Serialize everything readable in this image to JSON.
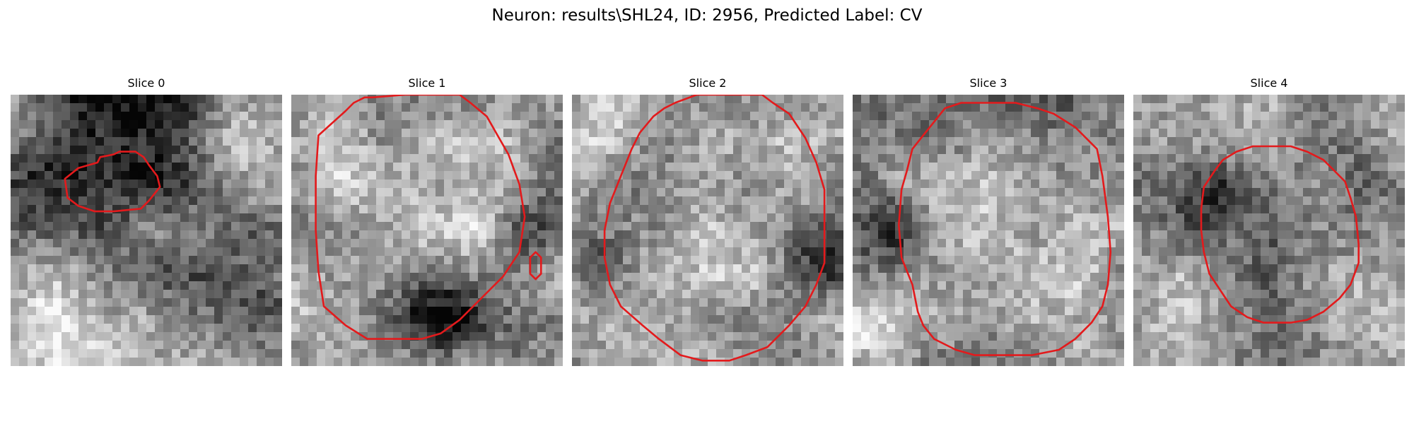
{
  "figure": {
    "title": "Neuron: results\\SHL24, ID: 2956, Predicted Label: CV",
    "panels": [
      {
        "title": "Slice 0",
        "image": "grayscale-em-patch",
        "contour_color": "#e31a1c",
        "seed": 11,
        "blobs": [
          [
            0.42,
            0.12,
            0.22,
            -0.45
          ],
          [
            0.15,
            0.3,
            0.14,
            -0.25
          ],
          [
            0.85,
            0.22,
            0.16,
            0.2
          ],
          [
            0.25,
            0.9,
            0.22,
            0.28
          ],
          [
            0.55,
            0.58,
            0.25,
            -0.12
          ],
          [
            0.9,
            0.7,
            0.12,
            -0.25
          ]
        ],
        "contours": [
          [
            [
              0.25,
              0.27
            ],
            [
              0.32,
              0.25
            ],
            [
              0.33,
              0.23
            ],
            [
              0.38,
              0.22
            ],
            [
              0.4,
              0.21
            ],
            [
              0.46,
              0.21
            ],
            [
              0.49,
              0.23
            ],
            [
              0.51,
              0.26
            ],
            [
              0.54,
              0.3
            ],
            [
              0.55,
              0.34
            ],
            [
              0.51,
              0.39
            ],
            [
              0.48,
              0.42
            ],
            [
              0.38,
              0.43
            ],
            [
              0.31,
              0.43
            ],
            [
              0.25,
              0.41
            ],
            [
              0.21,
              0.38
            ],
            [
              0.2,
              0.31
            ]
          ]
        ]
      },
      {
        "title": "Slice 1",
        "image": "grayscale-em-patch",
        "contour_color": "#e31a1c",
        "seed": 23,
        "blobs": [
          [
            0.5,
            0.45,
            0.28,
            0.18
          ],
          [
            0.55,
            0.8,
            0.12,
            -0.5
          ],
          [
            0.92,
            0.5,
            0.1,
            -0.3
          ],
          [
            0.1,
            0.8,
            0.15,
            0.15
          ],
          [
            0.15,
            0.15,
            0.12,
            0.1
          ]
        ],
        "contours": [
          [
            [
              0.1,
              0.15
            ],
            [
              0.2,
              0.06
            ],
            [
              0.23,
              0.03
            ],
            [
              0.27,
              0.01
            ],
            [
              0.3,
              0.01
            ],
            [
              0.42,
              0.0
            ],
            [
              0.62,
              0.0
            ],
            [
              0.66,
              0.03
            ],
            [
              0.72,
              0.08
            ],
            [
              0.76,
              0.15
            ],
            [
              0.8,
              0.22
            ],
            [
              0.84,
              0.33
            ],
            [
              0.86,
              0.45
            ],
            [
              0.84,
              0.58
            ],
            [
              0.78,
              0.67
            ],
            [
              0.7,
              0.75
            ],
            [
              0.62,
              0.83
            ],
            [
              0.55,
              0.88
            ],
            [
              0.48,
              0.9
            ],
            [
              0.28,
              0.9
            ],
            [
              0.2,
              0.85
            ],
            [
              0.12,
              0.78
            ],
            [
              0.1,
              0.65
            ],
            [
              0.09,
              0.5
            ],
            [
              0.09,
              0.3
            ]
          ],
          [
            [
              0.88,
              0.6
            ],
            [
              0.9,
              0.58
            ],
            [
              0.92,
              0.6
            ],
            [
              0.92,
              0.66
            ],
            [
              0.9,
              0.68
            ],
            [
              0.88,
              0.66
            ]
          ]
        ]
      },
      {
        "title": "Slice 2",
        "image": "grayscale-em-patch",
        "contour_color": "#e31a1c",
        "seed": 37,
        "blobs": [
          [
            0.5,
            0.52,
            0.3,
            0.05
          ],
          [
            0.1,
            0.1,
            0.12,
            0.22
          ],
          [
            0.07,
            0.62,
            0.08,
            -0.3
          ],
          [
            0.93,
            0.6,
            0.09,
            -0.3
          ],
          [
            0.5,
            0.95,
            0.12,
            0.15
          ]
        ],
        "contours": [
          [
            [
              0.25,
              0.14
            ],
            [
              0.3,
              0.08
            ],
            [
              0.34,
              0.05
            ],
            [
              0.38,
              0.03
            ],
            [
              0.46,
              0.0
            ],
            [
              0.62,
              0.0
            ],
            [
              0.7,
              0.0
            ],
            [
              0.74,
              0.03
            ],
            [
              0.8,
              0.07
            ],
            [
              0.86,
              0.16
            ],
            [
              0.9,
              0.25
            ],
            [
              0.93,
              0.35
            ],
            [
              0.93,
              0.5
            ],
            [
              0.93,
              0.62
            ],
            [
              0.9,
              0.7
            ],
            [
              0.86,
              0.78
            ],
            [
              0.8,
              0.85
            ],
            [
              0.72,
              0.93
            ],
            [
              0.64,
              0.96
            ],
            [
              0.58,
              0.98
            ],
            [
              0.48,
              0.98
            ],
            [
              0.4,
              0.96
            ],
            [
              0.32,
              0.9
            ],
            [
              0.26,
              0.85
            ],
            [
              0.18,
              0.78
            ],
            [
              0.14,
              0.7
            ],
            [
              0.12,
              0.6
            ],
            [
              0.12,
              0.5
            ],
            [
              0.14,
              0.4
            ],
            [
              0.18,
              0.3
            ],
            [
              0.22,
              0.2
            ]
          ]
        ]
      },
      {
        "title": "Slice 3",
        "image": "grayscale-em-patch",
        "contour_color": "#e31a1c",
        "seed": 53,
        "blobs": [
          [
            0.55,
            0.55,
            0.28,
            0.08
          ],
          [
            0.1,
            0.5,
            0.12,
            -0.35
          ],
          [
            0.7,
            0.15,
            0.15,
            -0.2
          ],
          [
            0.85,
            0.9,
            0.12,
            0.2
          ],
          [
            0.08,
            0.9,
            0.1,
            0.25
          ]
        ],
        "contours": [
          [
            [
              0.22,
              0.2
            ],
            [
              0.26,
              0.15
            ],
            [
              0.3,
              0.1
            ],
            [
              0.34,
              0.05
            ],
            [
              0.4,
              0.03
            ],
            [
              0.6,
              0.03
            ],
            [
              0.68,
              0.05
            ],
            [
              0.74,
              0.07
            ],
            [
              0.82,
              0.12
            ],
            [
              0.9,
              0.2
            ],
            [
              0.92,
              0.3
            ],
            [
              0.94,
              0.45
            ],
            [
              0.95,
              0.58
            ],
            [
              0.94,
              0.7
            ],
            [
              0.92,
              0.78
            ],
            [
              0.88,
              0.84
            ],
            [
              0.82,
              0.9
            ],
            [
              0.76,
              0.94
            ],
            [
              0.66,
              0.96
            ],
            [
              0.45,
              0.96
            ],
            [
              0.38,
              0.94
            ],
            [
              0.3,
              0.9
            ],
            [
              0.26,
              0.85
            ],
            [
              0.24,
              0.8
            ],
            [
              0.22,
              0.7
            ],
            [
              0.18,
              0.6
            ],
            [
              0.17,
              0.48
            ],
            [
              0.18,
              0.35
            ],
            [
              0.2,
              0.28
            ]
          ]
        ]
      },
      {
        "title": "Slice 4",
        "image": "grayscale-em-patch",
        "contour_color": "#e31a1c",
        "seed": 71,
        "blobs": [
          [
            0.52,
            0.48,
            0.24,
            -0.15
          ],
          [
            0.28,
            0.4,
            0.1,
            -0.25
          ],
          [
            0.85,
            0.85,
            0.12,
            0.15
          ],
          [
            0.15,
            0.9,
            0.15,
            0.2
          ],
          [
            0.9,
            0.2,
            0.12,
            0.05
          ]
        ],
        "contours": [
          [
            [
              0.26,
              0.34
            ],
            [
              0.3,
              0.28
            ],
            [
              0.33,
              0.24
            ],
            [
              0.38,
              0.21
            ],
            [
              0.44,
              0.19
            ],
            [
              0.58,
              0.19
            ],
            [
              0.64,
              0.21
            ],
            [
              0.7,
              0.24
            ],
            [
              0.74,
              0.28
            ],
            [
              0.78,
              0.32
            ],
            [
              0.8,
              0.38
            ],
            [
              0.82,
              0.45
            ],
            [
              0.83,
              0.55
            ],
            [
              0.83,
              0.62
            ],
            [
              0.8,
              0.7
            ],
            [
              0.76,
              0.75
            ],
            [
              0.7,
              0.8
            ],
            [
              0.64,
              0.83
            ],
            [
              0.58,
              0.84
            ],
            [
              0.48,
              0.84
            ],
            [
              0.42,
              0.82
            ],
            [
              0.36,
              0.78
            ],
            [
              0.32,
              0.72
            ],
            [
              0.28,
              0.66
            ],
            [
              0.26,
              0.58
            ],
            [
              0.25,
              0.5
            ],
            [
              0.25,
              0.42
            ]
          ]
        ]
      }
    ]
  }
}
